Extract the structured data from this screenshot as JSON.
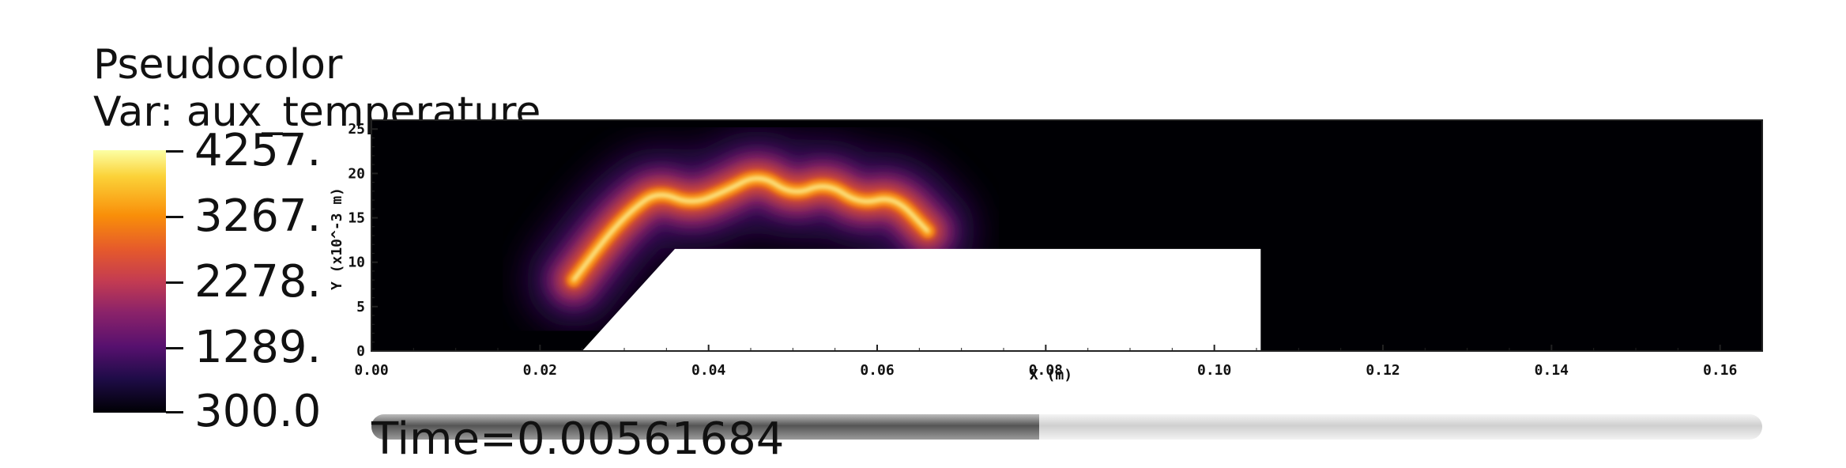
{
  "legend": {
    "title": "Pseudocolor",
    "var_label": "Var: aux_temperature",
    "ticks": [
      "4257.",
      "3267.",
      "2278.",
      "1289.",
      "300.0"
    ]
  },
  "time": {
    "label": "Time=0.00561684",
    "progress": 0.48
  },
  "chart_data": {
    "type": "heatmap",
    "title": "",
    "variable": "aux_temperature",
    "colormap": "inferno",
    "value_range": [
      300.0,
      4257.0
    ],
    "xlabel": "X (m)",
    "ylabel": "Y (x10^-3 m)",
    "xlim": [
      0.0,
      0.165
    ],
    "ylim": [
      0,
      26
    ],
    "x_ticks": [
      "0.00",
      "0.02",
      "0.04",
      "0.06",
      "0.08",
      "0.10",
      "0.12",
      "0.14",
      "0.16"
    ],
    "y_ticks": [
      "0",
      "5",
      "10",
      "15",
      "20",
      "25"
    ],
    "flame_front": {
      "x": [
        0.024,
        0.028,
        0.031,
        0.034,
        0.038,
        0.042,
        0.046,
        0.05,
        0.054,
        0.058,
        0.062,
        0.066
      ],
      "y": [
        8,
        13,
        16,
        18,
        16.5,
        18,
        20,
        17.5,
        19,
        16.5,
        17.5,
        13.5
      ]
    },
    "obstacle": {
      "x": [
        0.025,
        0.036,
        0.1055,
        0.1055
      ],
      "y": [
        0,
        11.5,
        11.5,
        0
      ]
    }
  }
}
